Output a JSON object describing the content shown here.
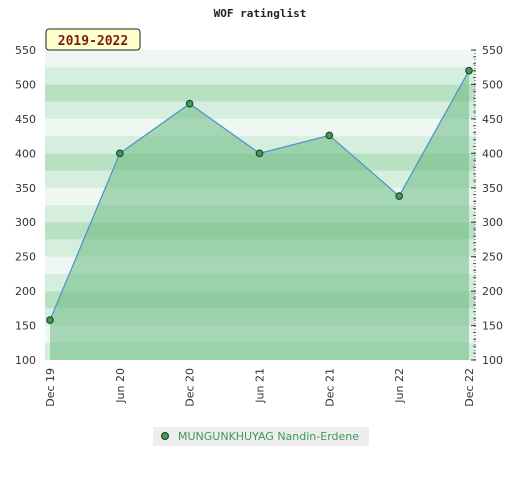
{
  "chart_data": {
    "type": "area",
    "title": "WOF ratinglist",
    "period_label": "2019-2022",
    "x": [
      "Dec 19",
      "Jun 20",
      "Dec 20",
      "Jun 21",
      "Dec 21",
      "Jun 22",
      "Dec 22"
    ],
    "series": [
      {
        "name": "MUNGUNKHUYAG Nandin-Erdene",
        "values": [
          158,
          400,
          472,
          400,
          426,
          338,
          520
        ]
      }
    ],
    "ylim": [
      100,
      550
    ],
    "yticks": [
      100,
      150,
      200,
      250,
      300,
      350,
      400,
      450,
      500,
      550
    ],
    "grid": true,
    "legend_position": "bottom-center",
    "colors": {
      "line": "#4f8fc9",
      "area": "#6cbb84",
      "marker": "#3f9a58",
      "band_light": "#eef7f1",
      "band_mid": "#d6eedd",
      "band_dark": "#b8e0c2",
      "period_bg": "#ffffcc"
    }
  }
}
